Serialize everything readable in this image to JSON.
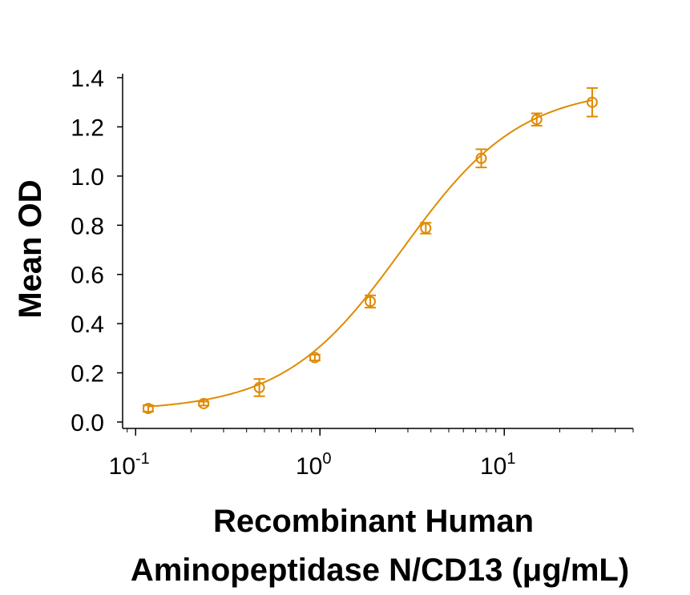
{
  "chart_data": {
    "type": "scatter",
    "title": "",
    "xlabel_lines": [
      "Recombinant Human",
      "Aminopeptidase N/CD13 (μg/mL)"
    ],
    "ylabel": "Mean OD",
    "x_scale": "log",
    "xlim": [
      0.085,
      50
    ],
    "ylim": [
      0.0,
      1.4
    ],
    "x_ticks": [
      {
        "value": 0.1,
        "base": "10",
        "exp": "-1"
      },
      {
        "value": 1,
        "base": "10",
        "exp": "0"
      },
      {
        "value": 10,
        "base": "10",
        "exp": "1"
      }
    ],
    "y_ticks": [
      "0.0",
      "0.2",
      "0.4",
      "0.6",
      "0.8",
      "1.0",
      "1.2",
      "1.4"
    ],
    "grid": false,
    "legend": "none",
    "series": [
      {
        "points": [
          {
            "x": 0.117,
            "y": 0.055,
            "err": 0.013
          },
          {
            "x": 0.234,
            "y": 0.075,
            "err": 0.008
          },
          {
            "x": 0.469,
            "y": 0.14,
            "err": 0.035
          },
          {
            "x": 0.938,
            "y": 0.262,
            "err": 0.012
          },
          {
            "x": 1.875,
            "y": 0.49,
            "err": 0.025
          },
          {
            "x": 3.75,
            "y": 0.788,
            "err": 0.022
          },
          {
            "x": 7.5,
            "y": 1.072,
            "err": 0.037
          },
          {
            "x": 15,
            "y": 1.23,
            "err": 0.025
          },
          {
            "x": 30,
            "y": 1.3,
            "err": 0.058
          }
        ],
        "fit": {
          "model": "4PL",
          "bottom": 0.045,
          "top": 1.36,
          "ec50": 2.8,
          "hill": 1.35
        }
      }
    ],
    "colors": {
      "series": "#e08a00",
      "axis": "#000000"
    }
  }
}
